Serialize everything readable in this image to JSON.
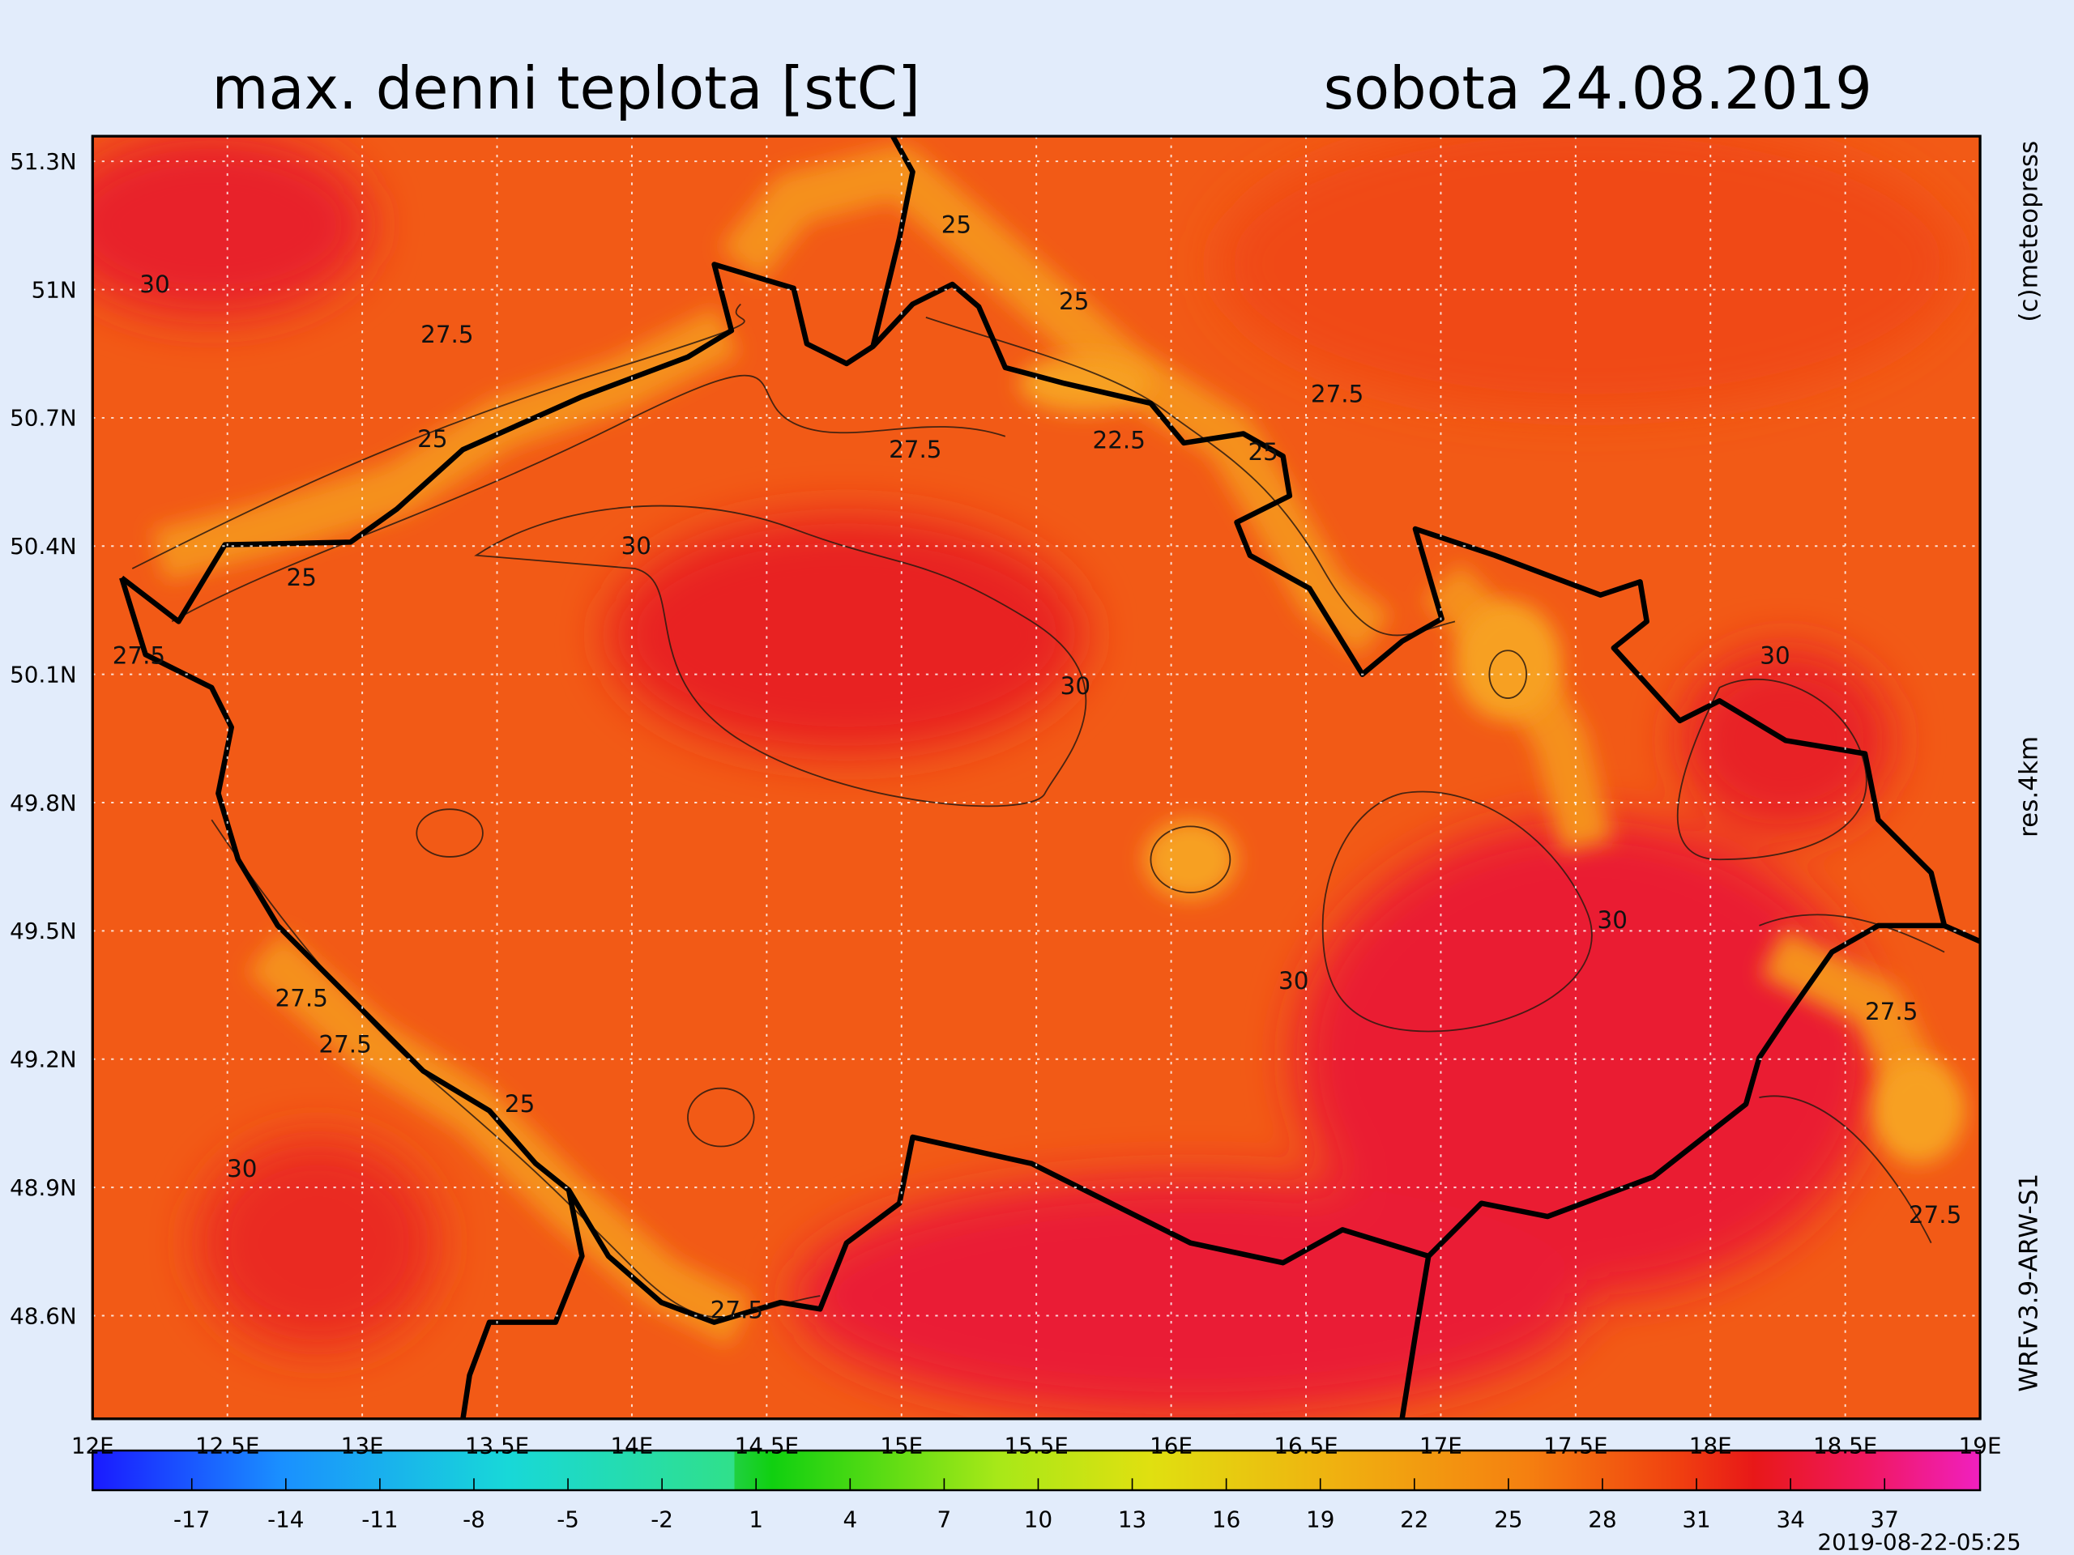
{
  "header": {
    "title": "max. denni teplota [stC]",
    "date": "sobota 24.08.2019"
  },
  "map": {
    "lat_labels": [
      "51.3N",
      "51N",
      "50.7N",
      "50.4N",
      "50.1N",
      "49.8N",
      "49.5N",
      "49.2N",
      "48.9N",
      "48.6N"
    ],
    "lon_labels": [
      "12E",
      "12.5E",
      "13E",
      "13.5E",
      "14E",
      "14.5E",
      "15E",
      "15.5E",
      "16E",
      "16.5E",
      "17E",
      "17.5E",
      "18E",
      "18.5E",
      "19E"
    ],
    "contour_labels": [
      "25",
      "30",
      "27.5",
      "25",
      "27.5",
      "25",
      "27.5",
      "22.5",
      "25",
      "30",
      "25",
      "27.5",
      "30",
      "30",
      "30",
      "30",
      "27.5",
      "27.5",
      "27.5",
      "25",
      "30",
      "27.5",
      "27.5"
    ]
  },
  "colorbar": {
    "labels": [
      "-17",
      "-14",
      "-11",
      "-8",
      "-5",
      "-2",
      "1",
      "4",
      "7",
      "10",
      "13",
      "16",
      "19",
      "22",
      "25",
      "28",
      "31",
      "34",
      "37"
    ]
  },
  "side": {
    "credit": "(c)meteopress",
    "resolution": "res.4km",
    "model": "WRFv3.9-ARW-S1"
  },
  "footer": {
    "timestamp": "2019-08-22-05:25"
  }
}
